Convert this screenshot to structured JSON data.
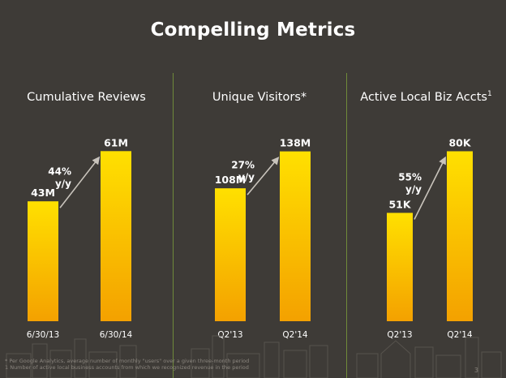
{
  "title": "Compelling Metrics",
  "colors": {
    "background": "#3e3b37",
    "bar_top": "#ffe000",
    "bar_bottom": "#f4a100",
    "divider": "#6f8a3a",
    "arrow": "#c9c4bc"
  },
  "chart_data": [
    {
      "type": "bar",
      "title": "Cumulative Reviews",
      "categories": [
        "6/30/13",
        "6/30/14"
      ],
      "values": [
        43,
        61
      ],
      "unit": "M",
      "data_labels": [
        "43M",
        "61M"
      ],
      "growth_label": [
        "44%",
        "y/y"
      ],
      "ylim": [
        0,
        64
      ]
    },
    {
      "type": "bar",
      "title": "Unique Visitors*",
      "categories": [
        "Q2'13",
        "Q2'14"
      ],
      "values": [
        108,
        138
      ],
      "unit": "M",
      "data_labels": [
        "108M",
        "138M"
      ],
      "growth_label": [
        "27%",
        "y/y"
      ],
      "ylim": [
        0,
        145
      ]
    },
    {
      "type": "bar",
      "title": "Active Local Biz Accts",
      "title_superscript": "1",
      "categories": [
        "Q2'13",
        "Q2'14"
      ],
      "values": [
        51,
        80
      ],
      "unit": "K",
      "data_labels": [
        "51K",
        "80K"
      ],
      "growth_label": [
        "55%",
        "y/y"
      ],
      "ylim": [
        0,
        84
      ]
    }
  ],
  "footnotes": [
    "* Per Google Analytics, average number of monthly \"users\" over a given three-month period",
    "1 Number of active local business accounts from which we recognized revenue in the period"
  ],
  "page_number": "3"
}
